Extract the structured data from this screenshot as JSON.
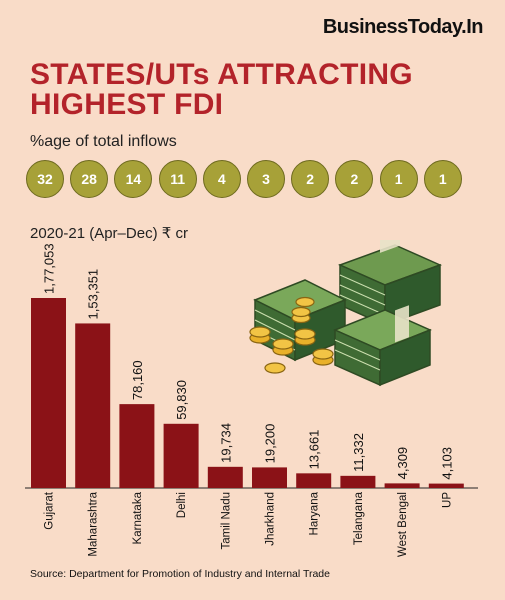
{
  "brand": "BusinessToday.In",
  "title": "STATES/UTs ATTRACTING HIGHEST FDI",
  "subtitle": "%age of total inflows",
  "unit_label": "2020-21 (Apr–Dec) ₹ cr",
  "source": "Source: Department for Promotion of Industry and Internal Trade",
  "colors": {
    "bar": "#8b1217",
    "circle": "#a7a138",
    "title": "#b3232a",
    "background": "#f9dcc8"
  },
  "chart_data": {
    "type": "bar",
    "categories": [
      "Gujarat",
      "Maharashtra",
      "Karnataka",
      "Delhi",
      "Tamil Nadu",
      "Jharkhand",
      "Haryana",
      "Telangana",
      "West Bengal",
      "UP"
    ],
    "values": [
      177053,
      153351,
      78160,
      59830,
      19734,
      19200,
      13661,
      11332,
      4309,
      4103
    ],
    "value_labels": [
      "1,77,053",
      "1,53,351",
      "78,160",
      "59,830",
      "19,734",
      "19,200",
      "13,661",
      "11,332",
      "4,309",
      "4,103"
    ],
    "shares": [
      "32",
      "28",
      "14",
      "11",
      "4",
      "3",
      "2",
      "2",
      "1",
      "1"
    ],
    "title": "STATES/UTs ATTRACTING HIGHEST FDI",
    "xlabel": "",
    "ylabel": "2020-21 (Apr–Dec) ₹ cr",
    "grid": false
  },
  "illustration": {
    "icon": "money-stacks-and-coins-icon"
  }
}
